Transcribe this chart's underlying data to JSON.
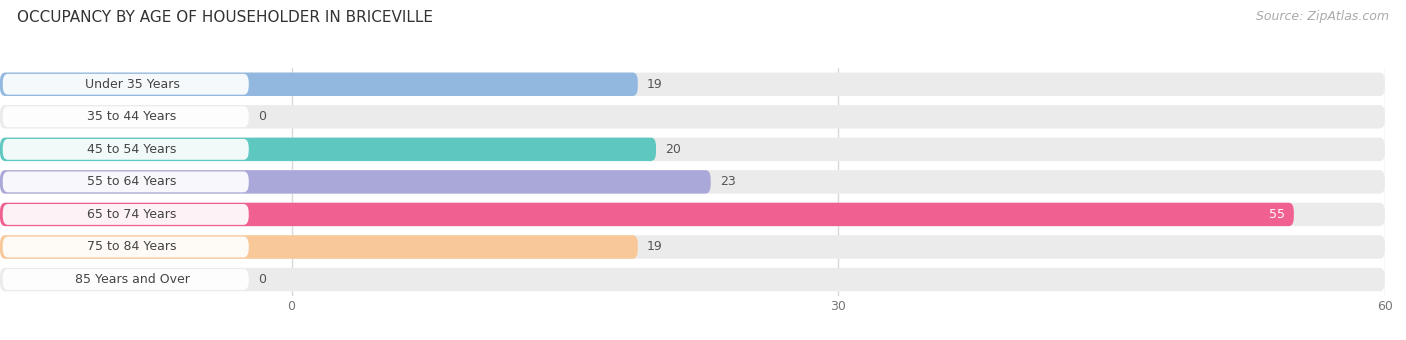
{
  "title": "OCCUPANCY BY AGE OF HOUSEHOLDER IN BRICEVILLE",
  "source": "Source: ZipAtlas.com",
  "categories": [
    "Under 35 Years",
    "35 to 44 Years",
    "45 to 54 Years",
    "55 to 64 Years",
    "65 to 74 Years",
    "75 to 84 Years",
    "85 Years and Over"
  ],
  "values": [
    19,
    0,
    20,
    23,
    55,
    19,
    0
  ],
  "bar_colors": [
    "#92b8e0",
    "#c9a8d0",
    "#5ec8c0",
    "#aaa8d8",
    "#f06090",
    "#f8c898",
    "#f0a8b0"
  ],
  "xlim_data": [
    0,
    60
  ],
  "xticks": [
    0,
    30,
    60
  ],
  "bg_color": "#ffffff",
  "bar_bg_color": "#ebebeb",
  "grid_color": "#d8d8d8",
  "title_fontsize": 11,
  "source_fontsize": 9,
  "label_fontsize": 9,
  "value_fontsize": 9,
  "figsize": [
    14.06,
    3.4
  ],
  "dpi": 100
}
